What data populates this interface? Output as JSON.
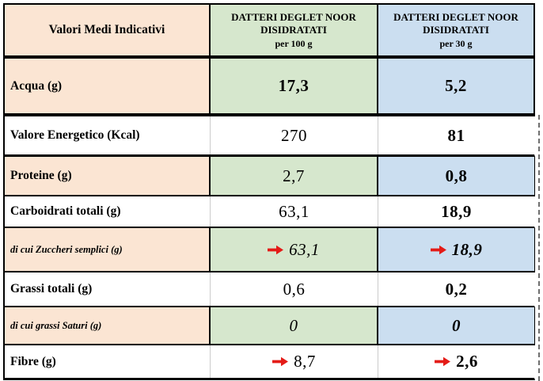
{
  "header": {
    "title": "Valori Medi Indicativi",
    "col100": {
      "name_line1": "DATTERI DEGLET NOOR",
      "name_line2": "DISIDRATATI",
      "serving": "per 100 g"
    },
    "col30": {
      "name_line1": "DATTERI DEGLET NOOR",
      "name_line2": "DISIDRATATI",
      "serving": "per 30 g"
    }
  },
  "rows": [
    {
      "label": "Acqua (g)",
      "v100": "17,3",
      "v30": "5,2",
      "shaded": true,
      "sub": false,
      "arrow": false,
      "bold100": true
    },
    {
      "label": "Valore Energetico (Kcal)",
      "v100": "270",
      "v30": "81",
      "shaded": false,
      "sub": false,
      "arrow": false,
      "bold100": false
    },
    {
      "label": "Proteine (g)",
      "v100": "2,7",
      "v30": "0,8",
      "shaded": true,
      "sub": false,
      "arrow": false,
      "bold100": false
    },
    {
      "label": "Carboidrati totali (g)",
      "v100": "63,1",
      "v30": "18,9",
      "shaded": false,
      "sub": false,
      "arrow": false,
      "bold100": false
    },
    {
      "label": "di cui Zuccheri semplici (g)",
      "v100": "63,1",
      "v30": "18,9",
      "shaded": true,
      "sub": true,
      "arrow": true,
      "bold100": false
    },
    {
      "label": "Grassi totali (g)",
      "v100": "0,6",
      "v30": "0,2",
      "shaded": false,
      "sub": false,
      "arrow": false,
      "bold100": false
    },
    {
      "label": "di cui grassi Saturi (g)",
      "v100": "0",
      "v30": "0",
      "shaded": true,
      "sub": true,
      "arrow": false,
      "bold100": false
    },
    {
      "label": "Fibre (g)",
      "v100": "8,7",
      "v30": "2,6",
      "shaded": false,
      "sub": false,
      "arrow": true,
      "bold100": false
    }
  ],
  "colors": {
    "label_shade": "#FBE5D3",
    "col100_shade": "#D6E7CD",
    "col30_shade": "#CBDEF0",
    "arrow": "#E41B17",
    "border": "#000000",
    "gridline": "#CBCBCB"
  },
  "chart_data": {
    "type": "table",
    "title": "Valori Medi Indicativi",
    "columns": [
      "Valori Medi Indicativi",
      "DATTERI DEGLET NOOR DISIDRATATI per 100 g",
      "DATTERI DEGLET NOOR DISIDRATATI per 30 g"
    ],
    "rows": [
      [
        "Acqua (g)",
        "17,3",
        "5,2"
      ],
      [
        "Valore Energetico (Kcal)",
        "270",
        "81"
      ],
      [
        "Proteine (g)",
        "2,7",
        "0,8"
      ],
      [
        "Carboidrati totali (g)",
        "63,1",
        "18,9"
      ],
      [
        "di cui Zuccheri semplici (g)",
        "63,1",
        "18,9"
      ],
      [
        "Grassi totali (g)",
        "0,6",
        "0,2"
      ],
      [
        "di cui grassi Saturi (g)",
        "0",
        "0"
      ],
      [
        "Fibre (g)",
        "8,7",
        "2,6"
      ]
    ],
    "notes": "red right-arrows mark values in rows: di cui Zuccheri semplici (g), Fibre (g)"
  }
}
